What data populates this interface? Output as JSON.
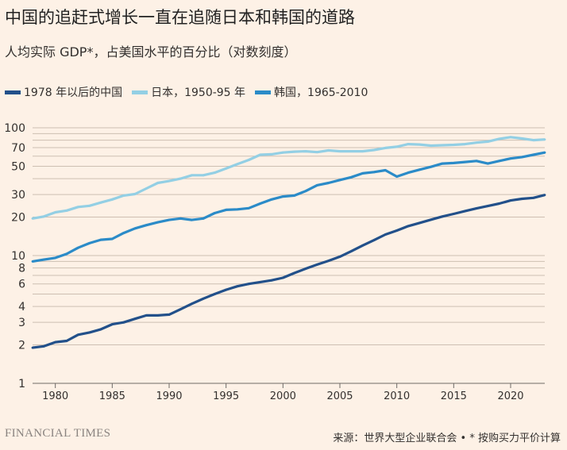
{
  "title": "中国的追赶式增长一直在追随日本和韩国的道路",
  "subtitle": "人均实际 GDP*，占美国水平的百分比（对数刻度）",
  "footer": {
    "brand": "FINANCIAL TIMES",
    "source": "来源：世界大型企业联合会 • * 按购买力平价计算"
  },
  "chart_data": {
    "type": "line",
    "y_scale": "log",
    "ylim": [
      1,
      100
    ],
    "xlim": [
      1978,
      2023
    ],
    "grid": true,
    "legend_position": "top-left",
    "y_ticks": [
      1,
      2,
      3,
      4,
      6,
      8,
      10,
      20,
      30,
      50,
      70,
      100
    ],
    "y_gridlines": [
      1,
      2,
      3,
      4,
      5,
      6,
      7,
      8,
      9,
      10,
      20,
      30,
      40,
      50,
      60,
      70,
      80,
      90,
      100
    ],
    "x_ticks": [
      1980,
      1985,
      1990,
      1995,
      2000,
      2005,
      2010,
      2015,
      2020
    ],
    "x": [
      1978,
      1979,
      1980,
      1981,
      1982,
      1983,
      1984,
      1985,
      1986,
      1987,
      1988,
      1989,
      1990,
      1991,
      1992,
      1993,
      1994,
      1995,
      1996,
      1997,
      1998,
      1999,
      2000,
      2001,
      2002,
      2003,
      2004,
      2005,
      2006,
      2007,
      2008,
      2009,
      2010,
      2011,
      2012,
      2013,
      2014,
      2015,
      2016,
      2017,
      2018,
      2019,
      2020,
      2021,
      2022,
      2023
    ],
    "series": [
      {
        "name": "1978 年以后的中国",
        "color": "#22508a",
        "values": [
          1.9,
          1.95,
          2.1,
          2.15,
          2.4,
          2.5,
          2.65,
          2.9,
          3.0,
          3.2,
          3.4,
          3.4,
          3.45,
          3.8,
          4.2,
          4.6,
          5.0,
          5.4,
          5.75,
          6.0,
          6.2,
          6.4,
          6.7,
          7.3,
          7.9,
          8.5,
          9.1,
          9.8,
          10.8,
          12.0,
          13.2,
          14.6,
          15.7,
          17.0,
          18.0,
          19.1,
          20.2,
          21.2,
          22.3,
          23.4,
          24.4,
          25.5,
          27.0,
          27.8,
          28.3,
          29.8
        ]
      },
      {
        "name": "日本，1950-95 年",
        "color": "#93cfe4",
        "values": [
          19.5,
          20.2,
          21.8,
          22.5,
          24,
          24.5,
          26,
          27.5,
          29.5,
          30.3,
          33.5,
          37,
          38.3,
          40,
          42.5,
          42.5,
          44.5,
          48,
          52,
          56,
          61.5,
          62,
          64,
          65,
          65.5,
          64.5,
          66.5,
          65.5,
          65.5,
          65.5,
          67,
          69.5,
          71,
          74.5,
          74,
          72.5,
          73,
          73.5,
          74.5,
          76.5,
          78,
          82,
          84.5,
          82.5,
          80,
          81
        ]
      },
      {
        "name": "韩国，1965-2010",
        "color": "#2b8bc8",
        "values": [
          9.0,
          9.3,
          9.6,
          10.3,
          11.5,
          12.5,
          13.3,
          13.5,
          15,
          16.3,
          17.3,
          18.2,
          19.0,
          19.5,
          19.0,
          19.5,
          21.5,
          22.8,
          23,
          23.5,
          25.5,
          27.5,
          29,
          29.5,
          32,
          35.5,
          37,
          39,
          41,
          44,
          45,
          46.5,
          41.5,
          44.5,
          47,
          49.5,
          52.5,
          53,
          54,
          55,
          52.5,
          55,
          57.5,
          59,
          61.5,
          64
        ]
      }
    ]
  }
}
